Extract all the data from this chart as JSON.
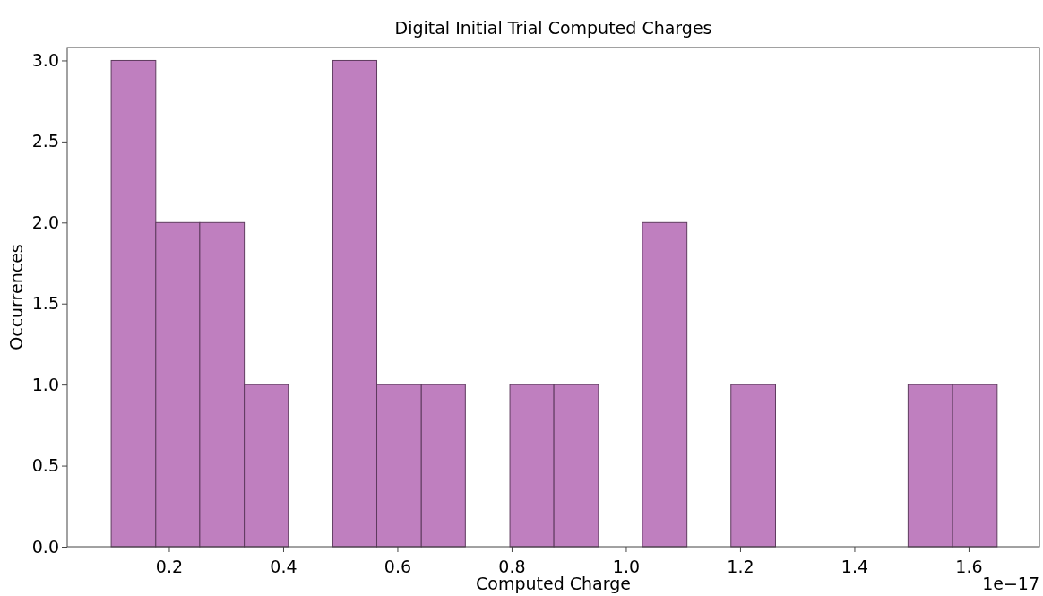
{
  "chart_data": {
    "type": "histogram",
    "title": "Digital Initial Trial Computed Charges",
    "xlabel": "Computed Charge",
    "ylabel": "Occurrences",
    "annotations": [
      "1e−17"
    ],
    "bins": [
      0.099,
      0.177,
      0.254,
      0.332,
      0.409,
      0.487,
      0.564,
      0.642,
      0.719,
      0.797,
      0.874,
      0.952,
      1.029,
      1.107,
      1.184,
      1.262,
      1.494,
      1.572,
      1.65
    ],
    "values": [
      3,
      2,
      2,
      1,
      0,
      3,
      1,
      1,
      0,
      1,
      1,
      0,
      2,
      0,
      1,
      0,
      1,
      1
    ],
    "color": "#bf7fbf",
    "xlim": [
      0.022,
      1.724
    ],
    "ylim": [
      0,
      3.08
    ],
    "xticks": [
      {
        "value": 0.2,
        "label": "0.2"
      },
      {
        "value": 0.4,
        "label": "0.4"
      },
      {
        "value": 0.6,
        "label": "0.6"
      },
      {
        "value": 0.8,
        "label": "0.8"
      },
      {
        "value": 1.0,
        "label": "1.0"
      },
      {
        "value": 1.2,
        "label": "1.2"
      },
      {
        "value": 1.4,
        "label": "1.4"
      },
      {
        "value": 1.6,
        "label": "1.6"
      }
    ],
    "yticks": [
      {
        "value": 0,
        "label": "0.0"
      },
      {
        "value": 0.5,
        "label": "0.5"
      },
      {
        "value": 1,
        "label": "1.0"
      },
      {
        "value": 1.5,
        "label": "1.5"
      },
      {
        "value": 2,
        "label": "2.0"
      },
      {
        "value": 2.5,
        "label": "2.5"
      },
      {
        "value": 3,
        "label": "3.0"
      }
    ],
    "grid": false
  }
}
